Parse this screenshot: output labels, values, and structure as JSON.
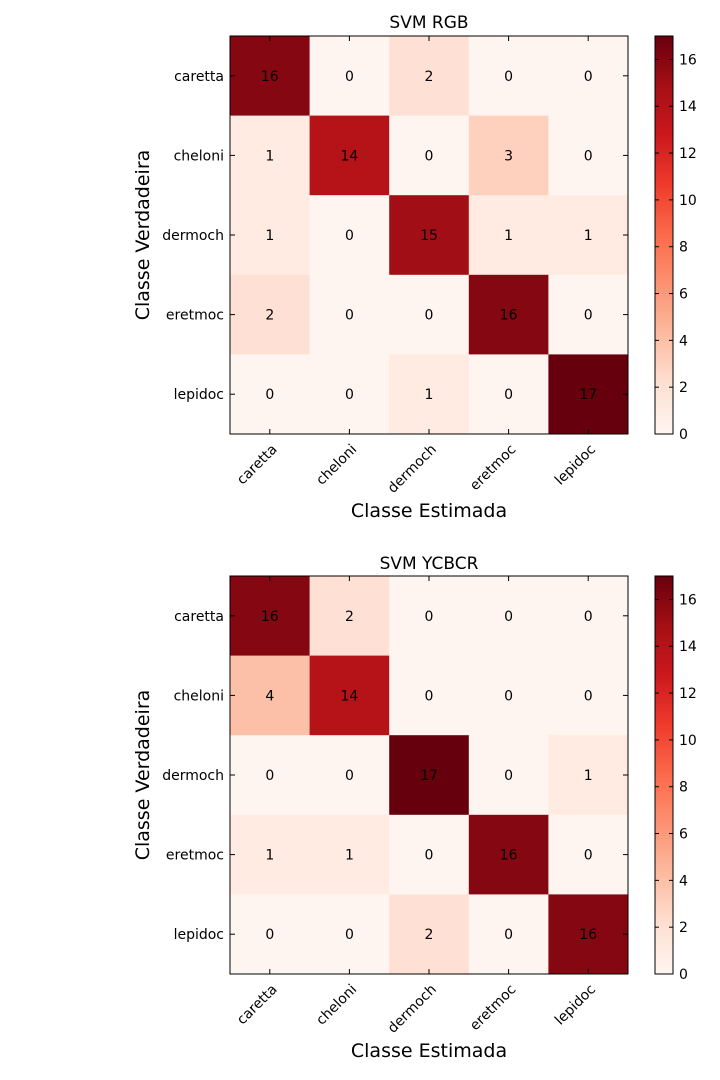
{
  "chart_data": [
    {
      "type": "heatmap",
      "title": "SVM RGB",
      "xlabel": "Classe Estimada",
      "ylabel": "Classe Verdadeira",
      "x_categories": [
        "caretta",
        "cheloni",
        "dermoch",
        "eretmoc",
        "lepidoc"
      ],
      "y_categories": [
        "caretta",
        "cheloni",
        "dermoch",
        "eretmoc",
        "lepidoc"
      ],
      "values": [
        [
          16,
          0,
          2,
          0,
          0
        ],
        [
          1,
          14,
          0,
          3,
          0
        ],
        [
          1,
          0,
          15,
          1,
          1
        ],
        [
          2,
          0,
          0,
          16,
          0
        ],
        [
          0,
          0,
          1,
          0,
          17
        ]
      ],
      "colormap": "Reds",
      "colorbar": {
        "range": [
          0,
          17
        ],
        "ticks": [
          0,
          2,
          4,
          6,
          8,
          10,
          12,
          14,
          16
        ]
      }
    },
    {
      "type": "heatmap",
      "title": "SVM YCBCR",
      "xlabel": "Classe Estimada",
      "ylabel": "Classe Verdadeira",
      "x_categories": [
        "caretta",
        "cheloni",
        "dermoch",
        "eretmoc",
        "lepidoc"
      ],
      "y_categories": [
        "caretta",
        "cheloni",
        "dermoch",
        "eretmoc",
        "lepidoc"
      ],
      "values": [
        [
          16,
          2,
          0,
          0,
          0
        ],
        [
          4,
          14,
          0,
          0,
          0
        ],
        [
          0,
          0,
          17,
          0,
          1
        ],
        [
          1,
          1,
          0,
          16,
          0
        ],
        [
          0,
          0,
          2,
          0,
          16
        ]
      ],
      "colormap": "Reds",
      "colorbar": {
        "range": [
          0,
          17
        ],
        "ticks": [
          0,
          2,
          4,
          6,
          8,
          10,
          12,
          14,
          16
        ]
      }
    }
  ],
  "colors": {
    "reds_scale": [
      "#fff5f0",
      "#fee0d2",
      "#fcbba1",
      "#fc9272",
      "#fb6a4a",
      "#ef3b2c",
      "#cb181d",
      "#a50f15",
      "#67000d"
    ],
    "text": "#000000",
    "frame": "#000000"
  }
}
